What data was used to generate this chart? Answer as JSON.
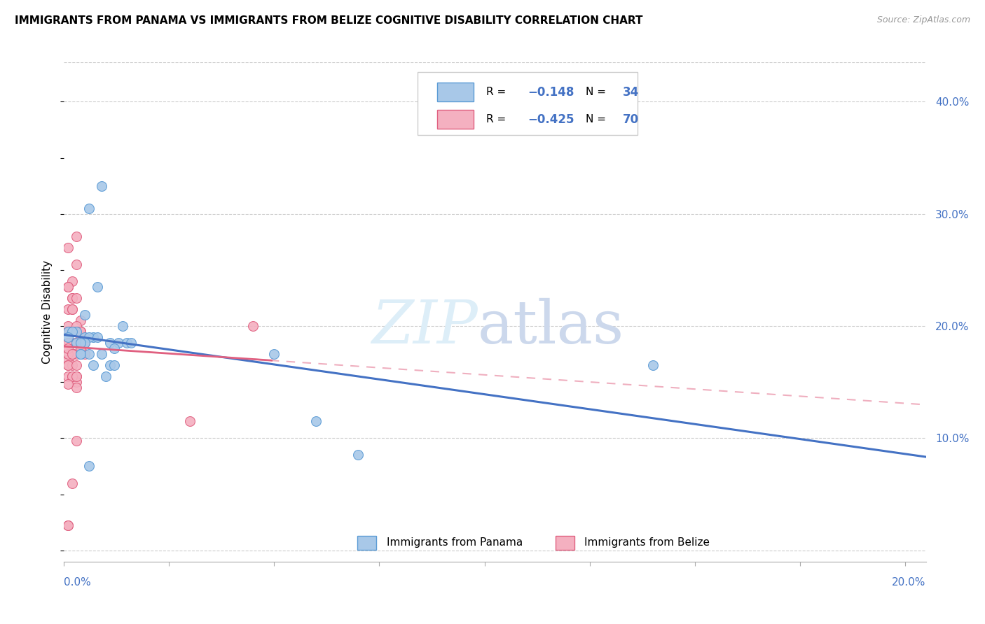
{
  "title": "IMMIGRANTS FROM PANAMA VS IMMIGRANTS FROM BELIZE COGNITIVE DISABILITY CORRELATION CHART",
  "source": "Source: ZipAtlas.com",
  "ylabel": "Cognitive Disability",
  "xlim": [
    0.0,
    0.205
  ],
  "ylim": [
    -0.01,
    0.435
  ],
  "yticks": [
    0.0,
    0.1,
    0.2,
    0.3,
    0.4
  ],
  "ytick_labels": [
    "",
    "10.0%",
    "20.0%",
    "30.0%",
    "40.0%"
  ],
  "xtick_label_left": "0.0%",
  "xtick_label_right": "20.0%",
  "color_panama_fill": "#a8c8e8",
  "color_panama_edge": "#5b9bd5",
  "color_panama_line": "#4472c4",
  "color_belize_fill": "#f4b0c0",
  "color_belize_edge": "#e06080",
  "color_belize_line": "#e06080",
  "r_panama": -0.148,
  "n_panama": 34,
  "r_belize": -0.425,
  "n_belize": 70,
  "panama_x": [
    0.001,
    0.009,
    0.006,
    0.003,
    0.002,
    0.001,
    0.003,
    0.004,
    0.005,
    0.006,
    0.007,
    0.004,
    0.005,
    0.008,
    0.006,
    0.005,
    0.007,
    0.009,
    0.011,
    0.013,
    0.015,
    0.012,
    0.011,
    0.01,
    0.012,
    0.014,
    0.016,
    0.05,
    0.14,
    0.06,
    0.07,
    0.006,
    0.008,
    0.004
  ],
  "panama_y": [
    0.195,
    0.325,
    0.305,
    0.195,
    0.195,
    0.19,
    0.185,
    0.175,
    0.19,
    0.175,
    0.19,
    0.175,
    0.21,
    0.235,
    0.19,
    0.185,
    0.165,
    0.175,
    0.185,
    0.185,
    0.185,
    0.18,
    0.165,
    0.155,
    0.165,
    0.2,
    0.185,
    0.175,
    0.165,
    0.115,
    0.085,
    0.075,
    0.19,
    0.185
  ],
  "belize_x": [
    0.001,
    0.003,
    0.002,
    0.001,
    0.001,
    0.001,
    0.002,
    0.001,
    0.002,
    0.002,
    0.003,
    0.004,
    0.002,
    0.002,
    0.001,
    0.002,
    0.002,
    0.003,
    0.002,
    0.002,
    0.001,
    0.002,
    0.002,
    0.003,
    0.004,
    0.004,
    0.005,
    0.003,
    0.002,
    0.001,
    0.001,
    0.002,
    0.003,
    0.004,
    0.004,
    0.002,
    0.003,
    0.002,
    0.001,
    0.003,
    0.002,
    0.003,
    0.001,
    0.002,
    0.001,
    0.004,
    0.002,
    0.002,
    0.004,
    0.003,
    0.003,
    0.005,
    0.002,
    0.001,
    0.003,
    0.004,
    0.001,
    0.002,
    0.001,
    0.003,
    0.003,
    0.002,
    0.001,
    0.001,
    0.003,
    0.002,
    0.003,
    0.004,
    0.03,
    0.045
  ],
  "belize_y": [
    0.27,
    0.28,
    0.24,
    0.235,
    0.235,
    0.2,
    0.225,
    0.215,
    0.195,
    0.215,
    0.255,
    0.205,
    0.225,
    0.175,
    0.185,
    0.195,
    0.185,
    0.185,
    0.195,
    0.175,
    0.185,
    0.195,
    0.175,
    0.185,
    0.175,
    0.195,
    0.175,
    0.185,
    0.175,
    0.17,
    0.165,
    0.175,
    0.175,
    0.18,
    0.195,
    0.165,
    0.155,
    0.175,
    0.155,
    0.15,
    0.155,
    0.145,
    0.165,
    0.155,
    0.148,
    0.185,
    0.195,
    0.175,
    0.195,
    0.155,
    0.165,
    0.185,
    0.195,
    0.175,
    0.195,
    0.19,
    0.18,
    0.175,
    0.195,
    0.2,
    0.098,
    0.06,
    0.022,
    0.022,
    0.225,
    0.215,
    0.195,
    0.195,
    0.115,
    0.2
  ]
}
